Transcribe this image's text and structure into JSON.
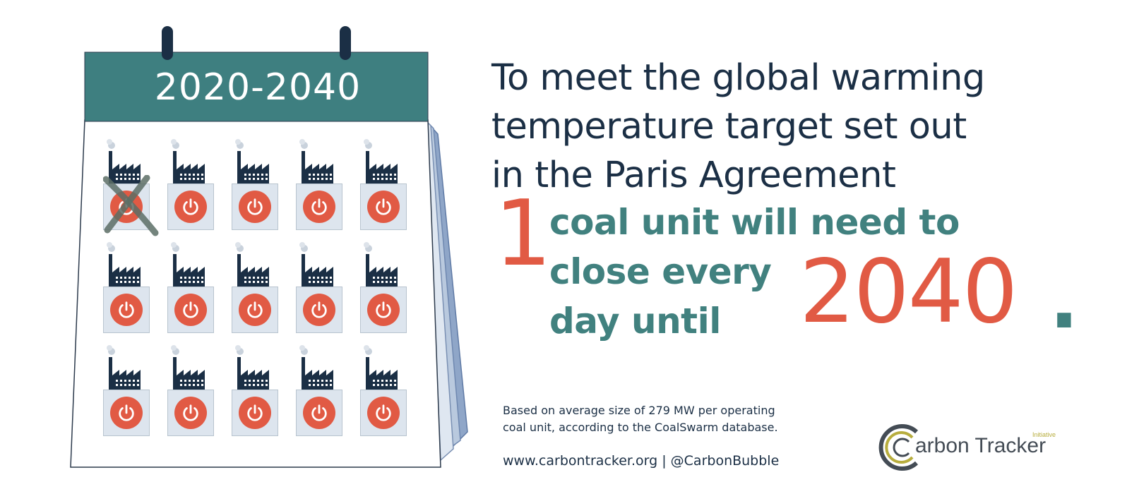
{
  "calendar": {
    "year_range": "2020-2040",
    "header_color": "#3e7f80",
    "binding_color": "#1b2f45",
    "rows": 3,
    "columns": 5,
    "crossed_tiles": 1,
    "tile_icon": "factory-icon",
    "button_icon": "power-icon",
    "button_color": "#e15a44"
  },
  "headline": {
    "line1": "To meet the global warming",
    "line2": "temperature target set out",
    "line3": "in the Paris Agreement"
  },
  "stat": {
    "number": "1",
    "line1": "coal unit will need to",
    "line2": "close every",
    "line3": "day until",
    "year": "2040",
    "period": "."
  },
  "footnote": {
    "line1": "Based on average size of 279 MW per operating",
    "line2": "coal unit, according to the CoalSwarm database."
  },
  "links": "www.carbontracker.org | @CarbonBubble",
  "logo": {
    "text": "arbon Tracker",
    "small_text": "Initiative",
    "icon": "carbon-tracker-c-logo-icon"
  },
  "colors": {
    "navy": "#1b2f45",
    "teal": "#41817f",
    "red": "#e15a44",
    "olive": "#b7ad3e"
  }
}
